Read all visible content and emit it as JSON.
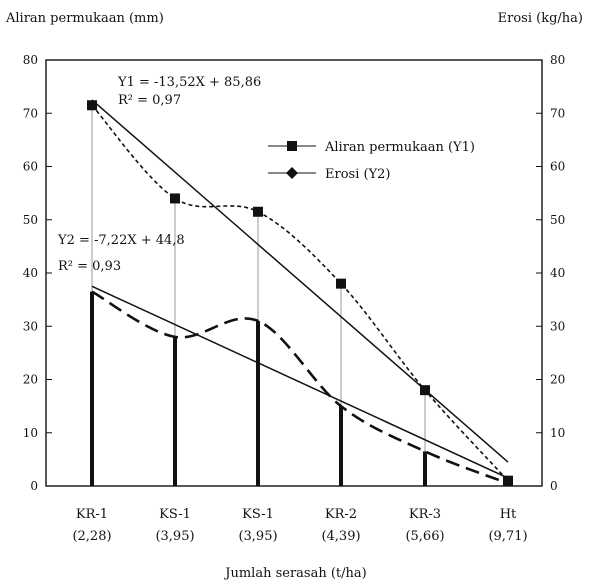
{
  "chart_data": {
    "type": "bar",
    "title": "",
    "xlabel": "Jumlah serasah (t/ha)",
    "ylabel_left": "Aliran permukaan (mm)",
    "ylabel_right": "Erosi (kg/ha)",
    "ylim": [
      0,
      80
    ],
    "yticks": [
      "0",
      "10",
      "20",
      "30",
      "40",
      "50",
      "60",
      "70",
      "80"
    ],
    "categories": [
      {
        "name": "KR-1",
        "sub": "(2,28)"
      },
      {
        "name": "KS-1",
        "sub": "(3,95)"
      },
      {
        "name": "KS-1",
        "sub": "(3,95)"
      },
      {
        "name": "KR-2",
        "sub": "(4,39)"
      },
      {
        "name": "KR-3",
        "sub": "(5,66)"
      },
      {
        "name": "Ht",
        "sub": "(9,71)"
      }
    ],
    "series": [
      {
        "name": "Aliran permukaan (Y1)",
        "marker": "square",
        "style": "thin-bar-dotted-curve",
        "values": [
          71.5,
          54,
          51.5,
          38,
          18,
          1
        ]
      },
      {
        "name": "Erosi (Y2)",
        "marker": "diamond",
        "style": "thick-bar-dashed-curve",
        "values": [
          36.5,
          28,
          31,
          15,
          6.5,
          0.5
        ]
      }
    ],
    "trendlines": [
      {
        "label": "Y1 = -13,52X + 85,86",
        "r2": "R² = 0,97",
        "from": 72.5,
        "to": 4.5
      },
      {
        "label": "Y2 = -7,22X + 44,8",
        "r2": "R² = 0,93",
        "from": 37.5,
        "to": 1.5
      }
    ],
    "colors": {
      "ink": "#111111",
      "thin_bar": "#9a9a9a"
    },
    "grid": false,
    "legend_position": "top-right"
  }
}
